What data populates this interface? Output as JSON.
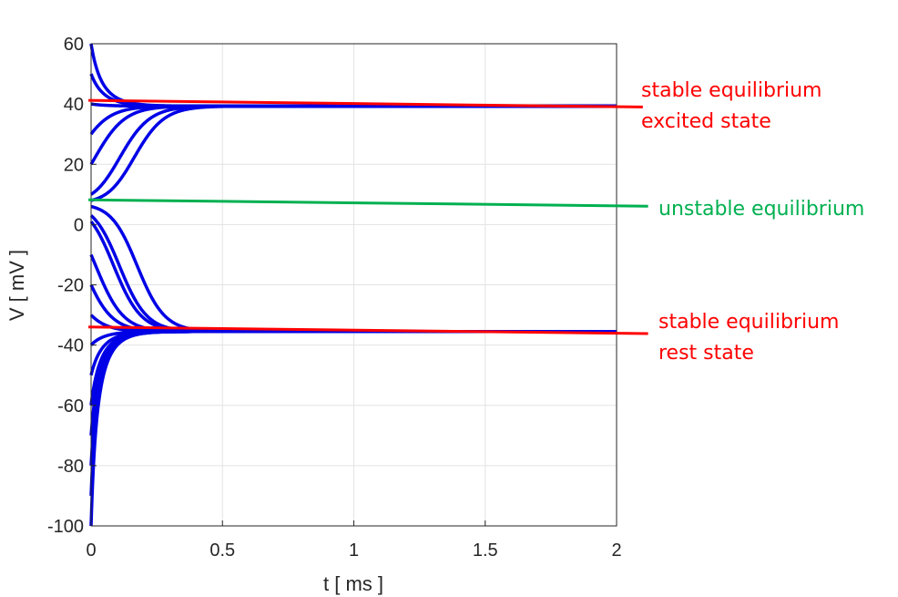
{
  "chart_data": {
    "type": "line",
    "xlabel": "t  [ ms ]",
    "ylabel": "V  [ mV ]",
    "xlim": [
      0,
      2
    ],
    "ylim": [
      -100,
      60
    ],
    "grid": true,
    "x_ticks": [
      "0",
      "0.5",
      "1",
      "1.5",
      "2"
    ],
    "y_ticks": [
      "-100",
      "-80",
      "-60",
      "-40",
      "-20",
      "0",
      "20",
      "40",
      "60"
    ],
    "colors": {
      "trajectory": "#0000e6",
      "stable": "#ff0000",
      "unstable": "#00b050"
    },
    "equilibria": {
      "excited": {
        "v": 39.3
      },
      "unstable": {
        "v": 7.0
      },
      "rest": {
        "v": -35.5
      }
    },
    "trajectories": {
      "description_free": true,
      "initial_values": [
        60,
        50,
        40,
        30,
        20,
        10,
        8,
        6,
        3,
        1,
        -10,
        -20,
        -30,
        -40,
        -50,
        -60,
        -70,
        -80,
        -90,
        -100
      ]
    },
    "reference_lines": [
      {
        "kind": "stable",
        "start": [
          -0.01,
          41.2
        ],
        "end": [
          2.1,
          39.0
        ]
      },
      {
        "kind": "unstable",
        "start": [
          -0.01,
          8.2
        ],
        "end": [
          2.12,
          6.1
        ]
      },
      {
        "kind": "stable",
        "start": [
          -0.01,
          -34.0
        ],
        "end": [
          2.12,
          -36.2
        ]
      }
    ],
    "annotations": [
      {
        "lines": [
          "stable equilibrium",
          "excited state"
        ],
        "color": "#ff0000"
      },
      {
        "lines": [
          "unstable equilibrium"
        ],
        "color": "#00b050"
      },
      {
        "lines": [
          "stable equilibrium",
          "rest state"
        ],
        "color": "#ff0000"
      }
    ]
  }
}
